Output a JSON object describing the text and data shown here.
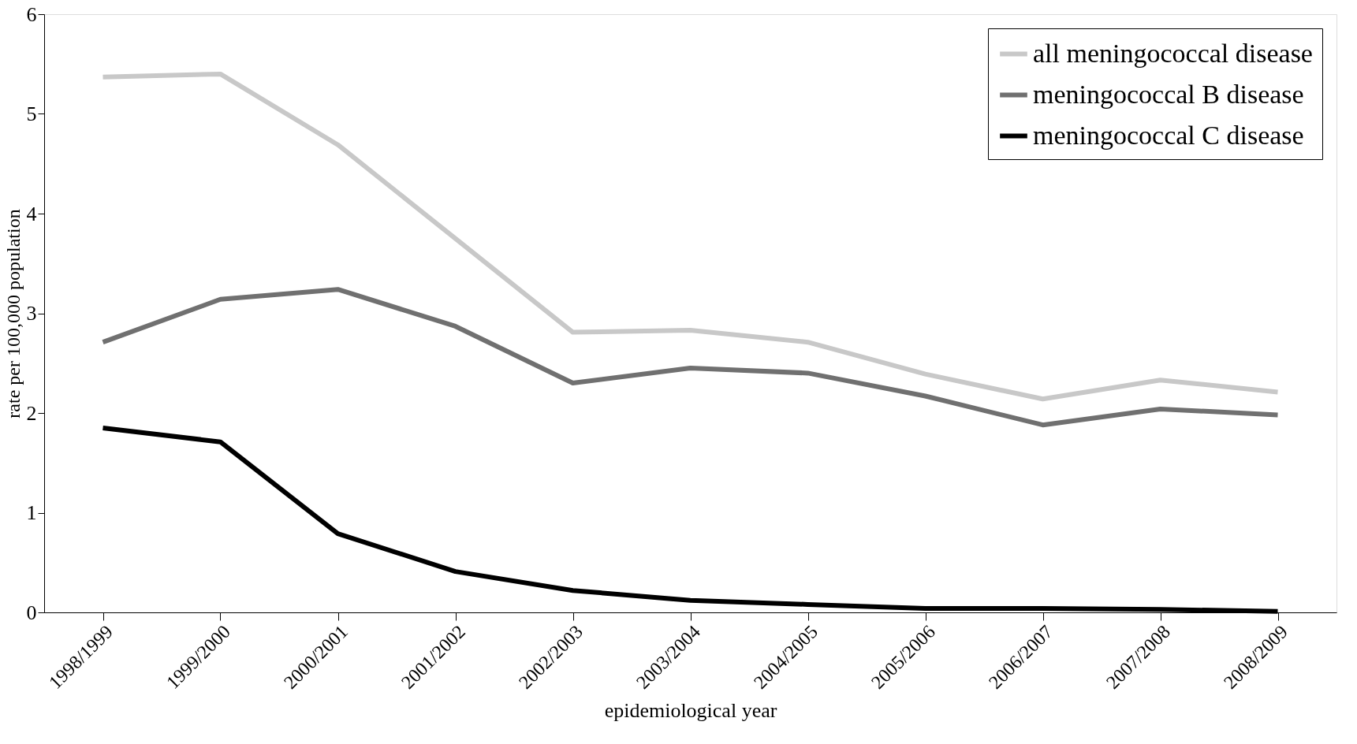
{
  "chart_data": {
    "type": "line",
    "xlabel": "epidemiological year",
    "ylabel": "rate per 100,000 population",
    "categories": [
      "1998/1999",
      "1999/2000",
      "2000/2001",
      "2001/2002",
      "2002/2003",
      "2003/2004",
      "2004/2005",
      "2005/2006",
      "2006/2007",
      "2007/2008",
      "2008/2009"
    ],
    "series": [
      {
        "name": "all meningococcal disease",
        "color": "#c8c8c8",
        "values": [
          5.37,
          5.4,
          4.69,
          3.75,
          2.81,
          2.83,
          2.71,
          2.39,
          2.14,
          2.33,
          2.21
        ]
      },
      {
        "name": "meningococcal B disease",
        "color": "#707070",
        "values": [
          2.71,
          3.14,
          3.24,
          2.87,
          2.3,
          2.45,
          2.4,
          2.17,
          1.88,
          2.04,
          1.98
        ]
      },
      {
        "name": "meningococcal C disease",
        "color": "#000000",
        "values": [
          1.85,
          1.71,
          0.79,
          0.41,
          0.22,
          0.12,
          0.08,
          0.04,
          0.04,
          0.03,
          0.01
        ]
      }
    ],
    "ylim": [
      0,
      6
    ],
    "yticks": [
      0,
      1,
      2,
      3,
      4,
      5,
      6
    ],
    "grid": false,
    "legend": "top right",
    "marker": "none",
    "line_style": "solid"
  }
}
